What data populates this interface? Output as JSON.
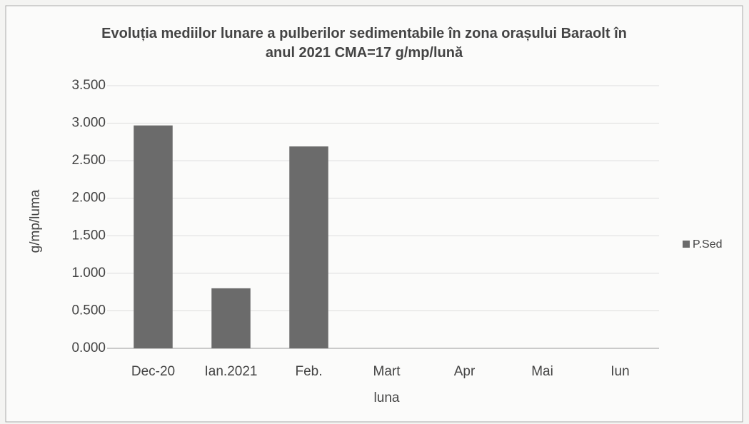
{
  "chart_data": {
    "type": "bar",
    "title": "Evoluția mediilor lunare a pulberilor sedimentabile în zona orașului Baraolt în anul 2021 CMA=17 g/mp/lună",
    "y_label": "g/mp/luma",
    "x_label": "luna",
    "categories": [
      "Dec-20",
      "Ian.2021",
      "Feb.",
      "Mart",
      "Apr",
      "Mai",
      "Iun"
    ],
    "series": [
      {
        "name": "P.Sed",
        "color": "#6b6b6b",
        "values": [
          2.97,
          0.8,
          2.69,
          null,
          null,
          null,
          null
        ]
      }
    ],
    "ylim": [
      0,
      3.5
    ],
    "yticks": [
      {
        "value": 0,
        "label": "0.000"
      },
      {
        "value": 0.5,
        "label": "0.500"
      },
      {
        "value": 1,
        "label": "1.000"
      },
      {
        "value": 1.5,
        "label": "1.500"
      },
      {
        "value": 2,
        "label": "2.000"
      },
      {
        "value": 2.5,
        "label": "2.500"
      },
      {
        "value": 3,
        "label": "3.000"
      },
      {
        "value": 3.5,
        "label": "3.500"
      }
    ],
    "grid": true,
    "legend": "right"
  }
}
